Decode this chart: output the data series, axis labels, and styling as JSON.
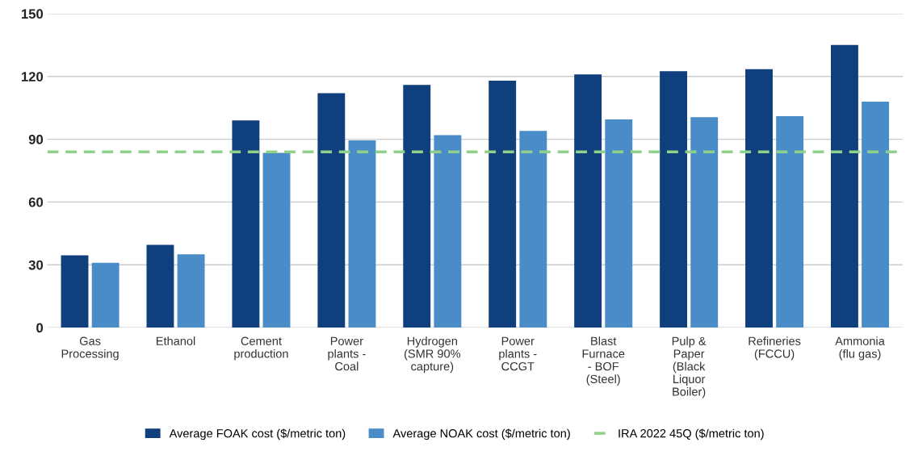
{
  "chart_data": {
    "type": "bar",
    "categories": [
      "Gas\nProcessing",
      "Ethanol",
      "Cement\nproduction",
      "Power\nplants -\nCoal",
      "Hydrogen\n(SMR 90%\ncapture)",
      "Power\nplants -\nCCGT",
      "Blast\nFurnace\n- BOF\n(Steel)",
      "Pulp &\nPaper\n(Black\nLiquor\nBoiler)",
      "Refineries\n(FCCU)",
      "Ammonia\n(flu gas)"
    ],
    "series": [
      {
        "name": "Average FOAK cost ($/metric ton)",
        "color": "#0f3f7c",
        "values": [
          34.5,
          39.5,
          99,
          112,
          116,
          118,
          121,
          122.5,
          123.5,
          135
        ]
      },
      {
        "name": "Average NOAK cost ($/metric ton)",
        "color": "#4a8cc8",
        "values": [
          31,
          35,
          83.5,
          89.5,
          92,
          94,
          99.5,
          100.5,
          101,
          108
        ]
      }
    ],
    "ref_lines": [
      {
        "axis": "y",
        "value": 84,
        "label": "IRA 2022 45Q ($/metric ton)",
        "color": "#8fd18a",
        "line_style": "dashed"
      }
    ],
    "ylim": [
      0,
      150
    ],
    "yticks": [
      0,
      30,
      60,
      90,
      120,
      150
    ],
    "grid": "y",
    "legend": "bottom"
  }
}
